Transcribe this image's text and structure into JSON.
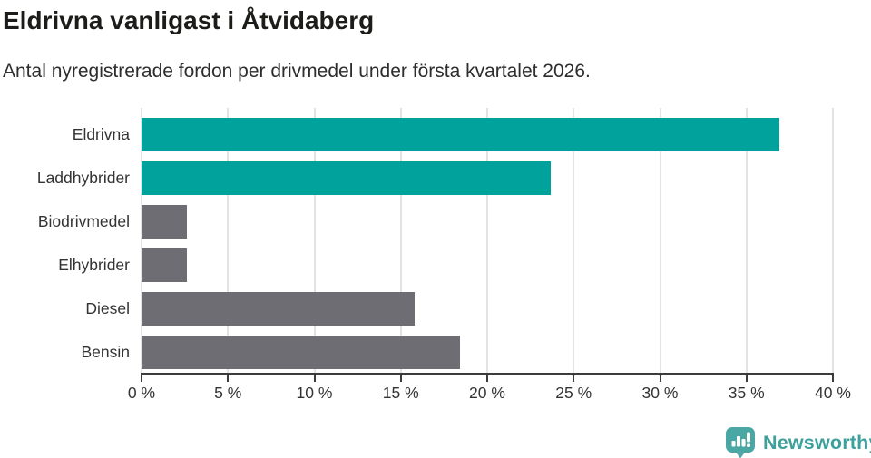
{
  "chart_data": {
    "type": "bar",
    "orientation": "horizontal",
    "title": "Eldrivna vanligast i Åtvidaberg",
    "subtitle": "Antal nyregistrerade fordon per drivmedel under första kvartalet 2026.",
    "categories": [
      "Eldrivna",
      "Laddhybrider",
      "Biodrivmedel",
      "Elhybrider",
      "Diesel",
      "Bensin"
    ],
    "values": [
      36.9,
      23.7,
      2.6,
      2.6,
      15.8,
      18.4
    ],
    "unit": "%",
    "xlabel": "",
    "ylabel": "",
    "xlim": [
      0,
      40
    ],
    "x_ticks": [
      0,
      5,
      10,
      15,
      20,
      25,
      30,
      35,
      40
    ],
    "x_tick_labels": [
      "0 %",
      "5 %",
      "10 %",
      "15 %",
      "20 %",
      "25 %",
      "30 %",
      "35 %",
      "40 %"
    ],
    "grid": true,
    "legend": false,
    "bar_colors": [
      "#00A29B",
      "#00A29B",
      "#6D6D73",
      "#6D6D73",
      "#6D6D73",
      "#6D6D73"
    ],
    "highlight_color": "#00A29B",
    "default_color": "#6D6D73"
  },
  "branding": {
    "logo_text": "Newsworthy",
    "logo_text_color": "#3EA09C",
    "logo_icon": "newsworthy-speech-bubble-bar-chart-icon",
    "logo_icon_color": "#4BA7A3"
  }
}
